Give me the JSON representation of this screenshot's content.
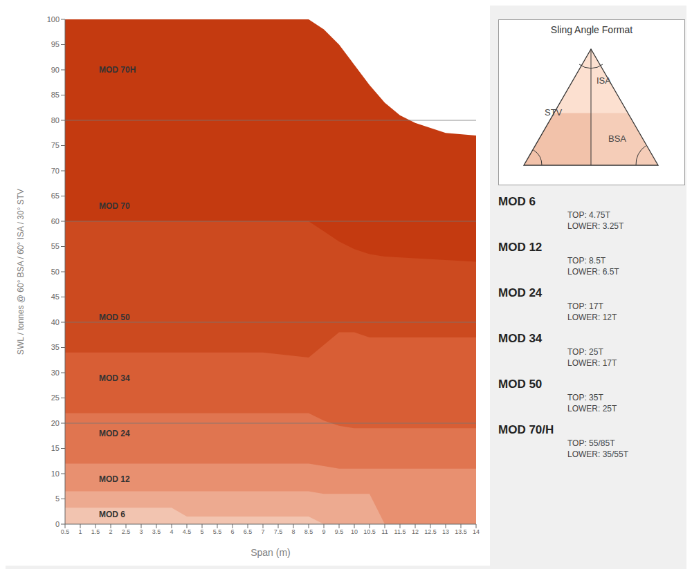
{
  "chart_data": {
    "type": "area",
    "xlabel": "Span (m)",
    "ylabel": "SWL / tonnes @ 60° BSA / 60° ISA / 30° STV",
    "xlim": [
      0.5,
      14
    ],
    "ylim": [
      0,
      100
    ],
    "xticks": [
      0.5,
      1,
      1.5,
      2,
      2.5,
      3,
      3.5,
      4,
      4.5,
      5,
      5.5,
      6,
      6.5,
      7,
      7.5,
      8,
      8.5,
      9,
      9.5,
      10,
      10.5,
      11,
      11.5,
      12,
      12.5,
      13,
      13.5,
      14
    ],
    "yticks": [
      0,
      5,
      10,
      15,
      20,
      25,
      30,
      35,
      40,
      45,
      50,
      55,
      60,
      65,
      70,
      75,
      80,
      85,
      90,
      95,
      100
    ],
    "grid": false,
    "hlines": [
      20,
      40,
      60,
      80
    ],
    "series": [
      {
        "name": "MOD 6",
        "color": "#f2c4b0",
        "x": [
          0.5,
          4.0,
          4.5,
          8.5,
          9.0,
          14.0
        ],
        "values": [
          3.25,
          3.25,
          1.5,
          1.5,
          0.0,
          0.0
        ]
      },
      {
        "name": "MOD 12",
        "color": "#edaa90",
        "x": [
          0.5,
          8.5,
          9.0,
          10.5,
          11.0,
          14.0
        ],
        "values": [
          6.5,
          6.5,
          6.0,
          6.0,
          0.0,
          0.0
        ]
      },
      {
        "name": "MOD 24",
        "color": "#e89070",
        "x": [
          0.5,
          8.5,
          9.0,
          9.5,
          10.5,
          11.0,
          14.0
        ],
        "values": [
          12.0,
          12.0,
          11.5,
          11.0,
          11.0,
          11.0,
          11.0
        ]
      },
      {
        "name": "MOD 34",
        "color": "#e07550",
        "x": [
          0.5,
          8.5,
          9.0,
          9.5,
          10.0,
          14.0
        ],
        "values": [
          22.0,
          22.0,
          20.5,
          19.5,
          19.0,
          19.0
        ]
      },
      {
        "name": "MOD 50",
        "color": "#d85e35",
        "x": [
          0.5,
          6.5,
          7.0,
          8.5,
          9.5,
          10.0,
          10.5,
          14.0
        ],
        "values": [
          34.0,
          34.0,
          34.0,
          33.0,
          38.0,
          38.0,
          37.0,
          37.0
        ]
      },
      {
        "name": "MOD 70",
        "color": "#cc4a1f",
        "x": [
          0.5,
          8.5,
          9.0,
          9.5,
          10.0,
          10.5,
          11.0,
          14.0
        ],
        "values": [
          60.0,
          60.0,
          58.0,
          56.0,
          54.5,
          53.5,
          53.0,
          52.0
        ]
      },
      {
        "name": "MOD 70H",
        "color": "#c43a10",
        "x": [
          0.5,
          8.5,
          9.0,
          9.5,
          10.0,
          10.5,
          11.0,
          11.5,
          12.0,
          12.5,
          13.0,
          14.0
        ],
        "values": [
          100.0,
          100.0,
          98.0,
          95.0,
          91.0,
          87.0,
          83.5,
          81.0,
          79.5,
          78.5,
          77.5,
          77.0
        ]
      }
    ],
    "annotations": [
      {
        "text": "MOD 70H",
        "x": 1.5,
        "y": 90
      },
      {
        "text": "MOD 70",
        "x": 1.5,
        "y": 63
      },
      {
        "text": "MOD 50",
        "x": 1.5,
        "y": 41
      },
      {
        "text": "MOD 34",
        "x": 1.5,
        "y": 29
      },
      {
        "text": "MOD 24",
        "x": 1.5,
        "y": 18
      },
      {
        "text": "MOD 12",
        "x": 1.5,
        "y": 9
      },
      {
        "text": "MOD 6",
        "x": 1.5,
        "y": 2
      }
    ],
    "inset": {
      "title": "Sling Angle Format",
      "labels": [
        "ISA",
        "STV",
        "BSA"
      ]
    },
    "specs": [
      {
        "name": "MOD 6",
        "top": "TOP: 4.75T",
        "lower": "LOWER: 3.25T"
      },
      {
        "name": "MOD 12",
        "top": "TOP: 8.5T",
        "lower": "LOWER: 6.5T"
      },
      {
        "name": "MOD 24",
        "top": "TOP: 17T",
        "lower": "LOWER: 12T"
      },
      {
        "name": "MOD 34",
        "top": "TOP: 25T",
        "lower": "LOWER: 17T"
      },
      {
        "name": "MOD 50",
        "top": "TOP: 35T",
        "lower": "LOWER: 25T"
      },
      {
        "name": "MOD 70/H",
        "top": "TOP: 55/85T",
        "lower": "LOWER: 35/55T"
      }
    ]
  }
}
